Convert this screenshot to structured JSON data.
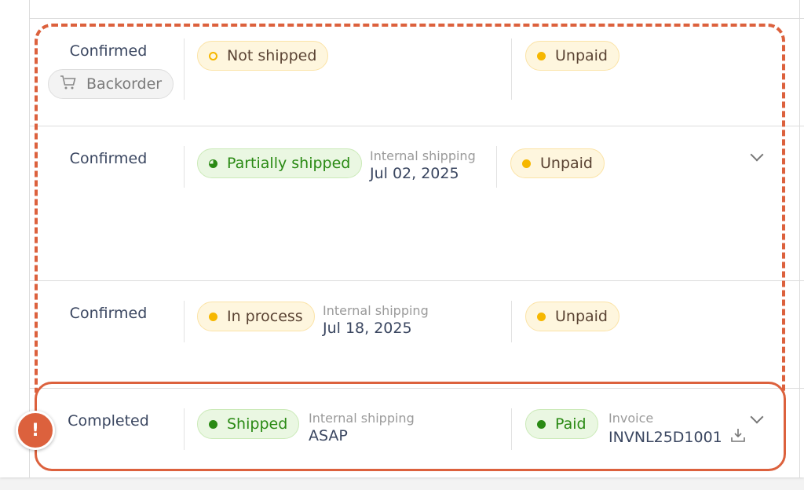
{
  "rows": [
    {
      "status": "Confirmed",
      "tag": {
        "label": "Backorder",
        "icon": "cart-icon"
      },
      "shipment": {
        "label": "Not shipped",
        "variant": "yellow",
        "icon": "hollow-circle"
      },
      "payment": {
        "label": "Unpaid",
        "variant": "yellow"
      }
    },
    {
      "status": "Confirmed",
      "shipment": {
        "label": "Partially shipped",
        "variant": "green",
        "icon": "half-circle"
      },
      "shipping": {
        "label": "Internal shipping",
        "value": "Jul 02, 2025"
      },
      "payment": {
        "label": "Unpaid",
        "variant": "yellow"
      },
      "expandable": true
    },
    {
      "status": "Confirmed",
      "shipment": {
        "label": "In process",
        "variant": "yellow",
        "icon": "dot"
      },
      "shipping": {
        "label": "Internal shipping",
        "value": "Jul 18, 2025"
      },
      "payment": {
        "label": "Unpaid",
        "variant": "yellow"
      }
    },
    {
      "status": "Completed",
      "shipment": {
        "label": "Shipped",
        "variant": "green",
        "icon": "dot"
      },
      "shipping": {
        "label": "Internal shipping",
        "value": "ASAP"
      },
      "payment": {
        "label": "Paid",
        "variant": "green"
      },
      "invoice": {
        "label": "Invoice",
        "value": "INVNL25D1001"
      },
      "expandable": true,
      "alert": "!"
    }
  ],
  "colors": {
    "highlight": "#dc613d",
    "yellow_dot": "#f6b700",
    "green_dot": "#2a8a14"
  }
}
